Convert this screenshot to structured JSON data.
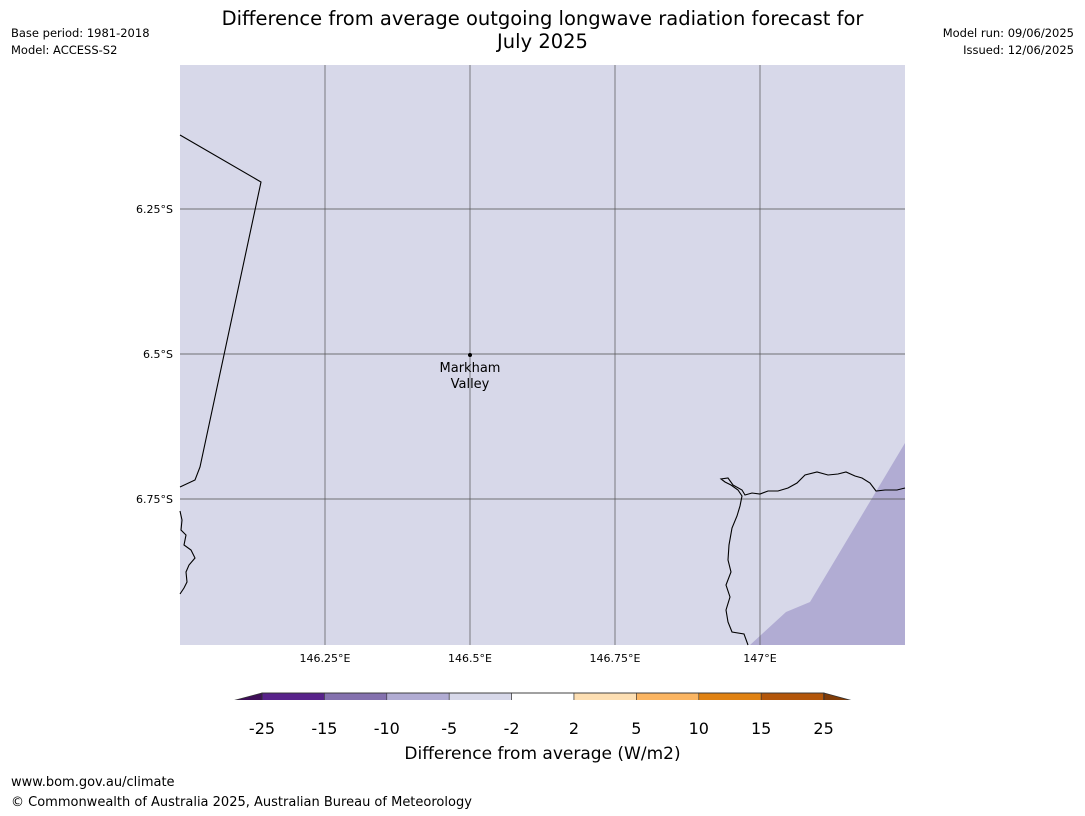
{
  "title_line1": "Difference from average outgoing longwave radiation forecast for",
  "title_line2": "July 2025",
  "meta_left": {
    "base_period": "Base period: 1981-2018",
    "model": "Model: ACCESS-S2"
  },
  "meta_right": {
    "model_run": "Model run: 09/06/2025",
    "issued": "Issued: 12/06/2025"
  },
  "map": {
    "fill_color": "#d7d8e9",
    "anomaly_color": "#b1acd3",
    "grid_lat_labels": [
      "6.25°S",
      "6.5°S",
      "6.75°S"
    ],
    "grid_lon_labels": [
      "146.25°E",
      "146.5°E",
      "146.75°E",
      "147°E"
    ],
    "place": {
      "name_line1": "Markham",
      "name_line2": "Valley"
    }
  },
  "colorbar": {
    "label": "Difference from average (W/m2)",
    "ticks": [
      "-25",
      "-15",
      "-10",
      "-5",
      "-2",
      "2",
      "5",
      "10",
      "15",
      "25"
    ],
    "colors": [
      "#3f0f58",
      "#58228a",
      "#8471ae",
      "#b1acd3",
      "#d7d8e9",
      "#ffffff",
      "#fddfb3",
      "#fbb562",
      "#e08213",
      "#b3560a",
      "#7f3b08"
    ]
  },
  "footer": {
    "url": "www.bom.gov.au/climate",
    "copyright": "© Commonwealth of Australia 2025, Australian Bureau of Meteorology"
  }
}
